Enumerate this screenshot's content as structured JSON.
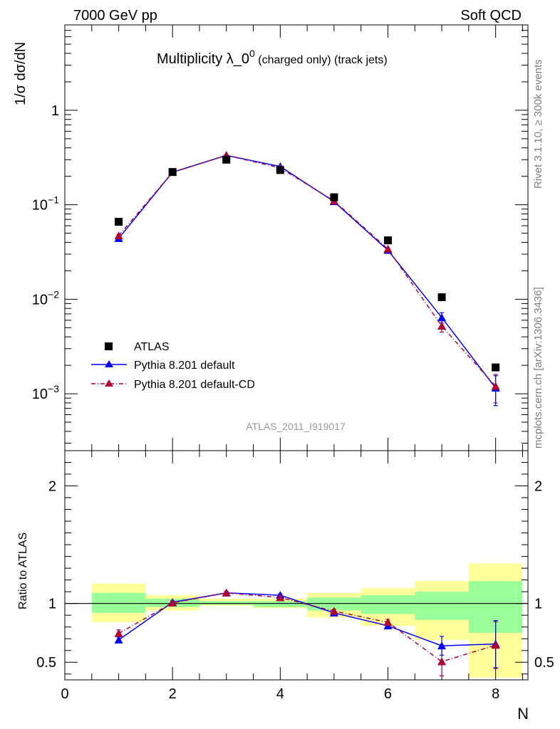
{
  "header": {
    "left": "7000 GeV pp",
    "right": "Soft QCD"
  },
  "plot_title": {
    "main": "Multiplicity λ_0",
    "sup": "0",
    "suffix": " (charged only) (track jets)"
  },
  "watermark": "ATLAS_2011_I919017",
  "side_labels": {
    "rivet": "Rivet 3.1.10, ≥ 300k events",
    "mcplots": "mcplots.cern.ch [arXiv:1306.3436]"
  },
  "legend": {
    "atlas": "ATLAS",
    "pythia_default": "Pythia 8.201 default",
    "pythia_cd": "Pythia 8.201 default-CD"
  },
  "colors": {
    "atlas": "#000000",
    "pythia_default": "#0000ff",
    "pythia_cd": "#b30033",
    "band_inner": "#99ff99",
    "band_outer": "#ffff99"
  },
  "chart_data": [
    {
      "type": "line",
      "ylabel": "1/σ dσ/dN",
      "yscale": "log",
      "ylim": [
        0.00025,
        8
      ],
      "xlim": [
        0,
        8.6
      ],
      "yticks": [
        {
          "value": 1,
          "label": "1",
          "sup": ""
        },
        {
          "value": 0.1,
          "label": "10",
          "sup": "−1"
        },
        {
          "value": 0.01,
          "label": "10",
          "sup": "−2"
        },
        {
          "value": 0.001,
          "label": "10",
          "sup": "−3"
        }
      ],
      "series": [
        {
          "name": "ATLAS",
          "x": [
            1,
            2,
            3,
            4,
            5,
            6,
            7,
            8
          ],
          "y": [
            0.066,
            0.222,
            0.3,
            0.233,
            0.12,
            0.042,
            0.0105,
            0.0019
          ]
        },
        {
          "name": "Pythia 8.201 default",
          "x": [
            1,
            2,
            3,
            4,
            5,
            6,
            7,
            8
          ],
          "y": [
            0.044,
            0.221,
            0.333,
            0.254,
            0.108,
            0.033,
            0.0064,
            0.00115
          ],
          "yerr": [
            0.0015,
            0.003,
            0.003,
            0.003,
            0.002,
            0.001,
            0.0008,
            0.0004
          ]
        },
        {
          "name": "Pythia 8.201 default-CD",
          "x": [
            1,
            2,
            3,
            4,
            5,
            6,
            7,
            8
          ],
          "y": [
            0.047,
            0.22,
            0.334,
            0.245,
            0.11,
            0.034,
            0.0052,
            0.0012
          ],
          "yerr": [
            0.0015,
            0.003,
            0.003,
            0.003,
            0.002,
            0.001,
            0.0007,
            0.0004
          ]
        }
      ]
    },
    {
      "type": "line",
      "xlabel": "N",
      "ylabel": "Ratio to ATLAS",
      "ylim": [
        0.35,
        2.3
      ],
      "xlim": [
        0,
        8.6
      ],
      "yticks": [
        0.5,
        1,
        2
      ],
      "xticks": [
        0,
        2,
        4,
        6,
        8
      ],
      "reference_line": 1,
      "bands": [
        {
          "x0": 0.5,
          "x1": 1.5,
          "inner": [
            0.92,
            1.09
          ],
          "outer": [
            0.84,
            1.17
          ]
        },
        {
          "x0": 1.5,
          "x1": 2.5,
          "inner": [
            0.97,
            1.04
          ],
          "outer": [
            0.94,
            1.07
          ]
        },
        {
          "x0": 2.5,
          "x1": 3.5,
          "inner": [
            0.99,
            1.02
          ],
          "outer": [
            0.98,
            1.04
          ]
        },
        {
          "x0": 3.5,
          "x1": 4.5,
          "inner": [
            0.97,
            1.02
          ],
          "outer": [
            0.96,
            1.04
          ]
        },
        {
          "x0": 4.5,
          "x1": 5.5,
          "inner": [
            0.94,
            1.05
          ],
          "outer": [
            0.88,
            1.09
          ]
        },
        {
          "x0": 5.5,
          "x1": 6.5,
          "inner": [
            0.91,
            1.07
          ],
          "outer": [
            0.81,
            1.13
          ]
        },
        {
          "x0": 6.5,
          "x1": 7.5,
          "inner": [
            0.86,
            1.1
          ],
          "outer": [
            0.69,
            1.19
          ]
        },
        {
          "x0": 7.5,
          "x1": 8.5,
          "inner": [
            0.75,
            1.19
          ],
          "outer": [
            0.37,
            1.34
          ]
        }
      ],
      "series": [
        {
          "name": "Pythia 8.201 default",
          "x": [
            1,
            2,
            3,
            4,
            5,
            6,
            7,
            8
          ],
          "y": [
            0.69,
            1.01,
            1.09,
            1.07,
            0.92,
            0.81,
            0.64,
            0.655
          ],
          "yerr": [
            0.025,
            0.012,
            0.012,
            0.012,
            0.015,
            0.025,
            0.08,
            0.2
          ]
        },
        {
          "name": "Pythia 8.201 default-CD",
          "x": [
            1,
            2,
            3,
            4,
            5,
            6,
            7,
            8
          ],
          "y": [
            0.745,
            1.005,
            1.09,
            1.05,
            0.935,
            0.84,
            0.505,
            0.645
          ],
          "yerr": [
            0.03,
            0.012,
            0.012,
            0.012,
            0.015,
            0.025,
            0.12,
            0.2
          ]
        }
      ]
    }
  ]
}
